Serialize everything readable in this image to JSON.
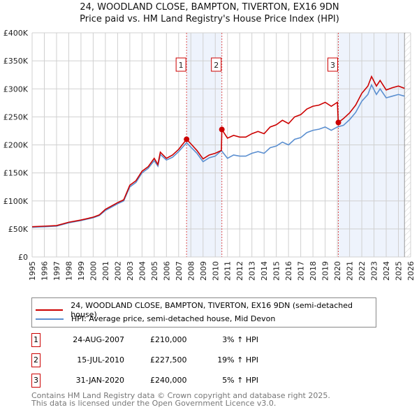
{
  "title": "24, WOODLAND CLOSE, BAMPTON, TIVERTON, EX16 9DN",
  "subtitle": "Price paid vs. HM Land Registry's House Price Index (HPI)",
  "chart_data": {
    "type": "line",
    "title": "24, WOODLAND CLOSE, BAMPTON, TIVERTON, EX16 9DN - Price paid vs. HM Land Registry's House Price Index (HPI)",
    "xlim": [
      1995,
      2026
    ],
    "ylim": [
      0,
      400000
    ],
    "x_ticks": [
      "1995",
      "1996",
      "1997",
      "1998",
      "1999",
      "2000",
      "2001",
      "2002",
      "2003",
      "2004",
      "2005",
      "2006",
      "2007",
      "2008",
      "2009",
      "2010",
      "2011",
      "2012",
      "2013",
      "2014",
      "2015",
      "2016",
      "2017",
      "2018",
      "2019",
      "2020",
      "2021",
      "2022",
      "2023",
      "2024",
      "2025",
      "2026"
    ],
    "y_ticks": [
      {
        "v": 0,
        "label": "£0"
      },
      {
        "v": 50000,
        "label": "£50K"
      },
      {
        "v": 100000,
        "label": "£100K"
      },
      {
        "v": 150000,
        "label": "£150K"
      },
      {
        "v": 200000,
        "label": "£200K"
      },
      {
        "v": 250000,
        "label": "£250K"
      },
      {
        "v": 300000,
        "label": "£300K"
      },
      {
        "v": 350000,
        "label": "£350K"
      },
      {
        "v": 400000,
        "label": "£400K"
      }
    ],
    "grid": true,
    "series": [
      {
        "name": "24, WOODLAND CLOSE, BAMPTON, TIVERTON, EX16 9DN (semi-detached house)",
        "color": "#cc0000",
        "x": [
          1995,
          1996,
          1997,
          1998,
          1999,
          2000,
          2000.5,
          2001,
          2002,
          2002.5,
          2003,
          2003.5,
          2004,
          2004.5,
          2005,
          2005.3,
          2005.5,
          2006,
          2006.5,
          2007,
          2007.65,
          2008,
          2008.5,
          2009,
          2009.5,
          2010,
          2010.5,
          2010.54,
          2011,
          2011.5,
          2012,
          2012.5,
          2013,
          2013.5,
          2014,
          2014.5,
          2015,
          2015.5,
          2016,
          2016.5,
          2017,
          2017.5,
          2018,
          2018.5,
          2019,
          2019.5,
          2020,
          2020.08,
          2020.5,
          2021,
          2021.5,
          2022,
          2022.5,
          2022.8,
          2023.2,
          2023.5,
          2024,
          2024.5,
          2025,
          2025.5
        ],
        "y": [
          54000,
          55000,
          56000,
          62000,
          66000,
          71000,
          75000,
          85000,
          97000,
          102000,
          128000,
          136000,
          153000,
          161000,
          176000,
          165000,
          187000,
          176000,
          182000,
          192000,
          210000,
          202000,
          190000,
          175000,
          182000,
          185000,
          190000,
          227500,
          212000,
          217000,
          214000,
          214000,
          220000,
          224000,
          220000,
          232000,
          236000,
          244000,
          238000,
          250000,
          254000,
          264000,
          269000,
          271000,
          276000,
          269000,
          276000,
          240000,
          247000,
          257000,
          271000,
          292000,
          305000,
          322000,
          305000,
          315000,
          298000,
          302000,
          305000,
          301000
        ]
      },
      {
        "name": "HPI: Average price, semi-detached house, Mid Devon",
        "color": "#5b8fd0",
        "x": [
          1995,
          1996,
          1997,
          1998,
          1999,
          2000,
          2000.5,
          2001,
          2002,
          2002.5,
          2003,
          2003.5,
          2004,
          2004.5,
          2005,
          2005.3,
          2005.5,
          2006,
          2006.5,
          2007,
          2007.65,
          2008,
          2008.5,
          2009,
          2009.5,
          2010,
          2010.5,
          2011,
          2011.5,
          2012,
          2012.5,
          2013,
          2013.5,
          2014,
          2014.5,
          2015,
          2015.5,
          2016,
          2016.5,
          2017,
          2017.5,
          2018,
          2018.5,
          2019,
          2019.5,
          2020,
          2020.5,
          2021,
          2021.5,
          2022,
          2022.5,
          2022.8,
          2023.2,
          2023.5,
          2024,
          2024.5,
          2025,
          2025.5
        ],
        "y": [
          53000,
          54000,
          55000,
          61000,
          65000,
          70000,
          74000,
          83000,
          95000,
          100000,
          125000,
          133000,
          150000,
          158000,
          172000,
          162000,
          183000,
          173000,
          178000,
          188000,
          204000,
          196000,
          185000,
          170000,
          177000,
          180000,
          190000,
          176000,
          182000,
          180000,
          180000,
          185000,
          188000,
          185000,
          195000,
          198000,
          205000,
          200000,
          210000,
          213000,
          222000,
          226000,
          228000,
          232000,
          226000,
          232000,
          235000,
          245000,
          258000,
          278000,
          290000,
          307000,
          290000,
          300000,
          284000,
          287000,
          290000,
          287000
        ]
      }
    ],
    "sales": [
      {
        "id": "1",
        "x": 2007.65,
        "y": 210000
      },
      {
        "id": "2",
        "x": 2010.54,
        "y": 227500
      },
      {
        "id": "3",
        "x": 2020.08,
        "y": 240000
      }
    ],
    "shaded_ranges": [
      [
        2007.65,
        2010.54
      ],
      [
        2020.08,
        2025.5
      ]
    ],
    "forecast_hatch_from": 2025.5,
    "legend": [
      "24, WOODLAND CLOSE, BAMPTON, TIVERTON, EX16 9DN (semi-detached house)",
      "HPI: Average price, semi-detached house, Mid Devon"
    ],
    "legend_placement": "below"
  },
  "transactions": [
    {
      "id": "1",
      "date": "24-AUG-2007",
      "price": "£210,000",
      "hpi": "3% ↑ HPI"
    },
    {
      "id": "2",
      "date": "15-JUL-2010",
      "price": "£227,500",
      "hpi": "19% ↑ HPI"
    },
    {
      "id": "3",
      "date": "31-JAN-2020",
      "price": "£240,000",
      "hpi": "5% ↑ HPI"
    }
  ],
  "footer": [
    "Contains HM Land Registry data © Crown copyright and database right 2025.",
    "This data is licensed under the Open Government Licence v3.0."
  ]
}
